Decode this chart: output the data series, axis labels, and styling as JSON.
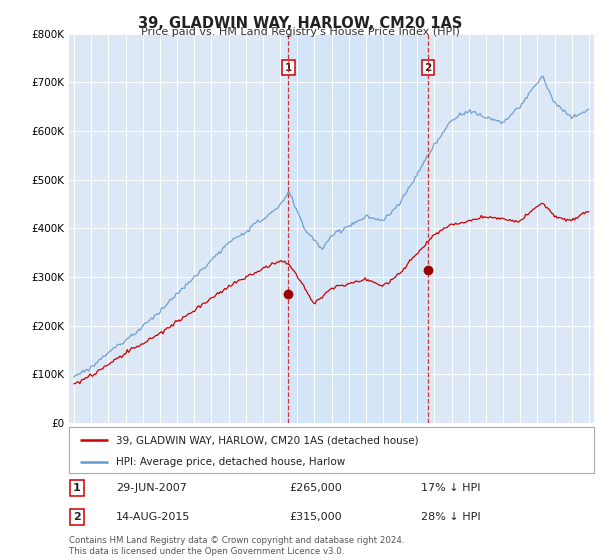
{
  "title": "39, GLADWIN WAY, HARLOW, CM20 1AS",
  "subtitle": "Price paid vs. HM Land Registry's House Price Index (HPI)",
  "ylim": [
    0,
    800000
  ],
  "hpi_color": "#6699cc",
  "price_color": "#cc0000",
  "shade_color": "#d0e4f7",
  "marker1_date": 2007.49,
  "marker1_price": 265000,
  "marker2_date": 2015.62,
  "marker2_price": 315000,
  "legend_line1": "39, GLADWIN WAY, HARLOW, CM20 1AS (detached house)",
  "legend_line2": "HPI: Average price, detached house, Harlow",
  "footnote": "Contains HM Land Registry data © Crown copyright and database right 2024.\nThis data is licensed under the Open Government Licence v3.0.",
  "background_color": "#dce8f5",
  "fig_background": "#ffffff"
}
